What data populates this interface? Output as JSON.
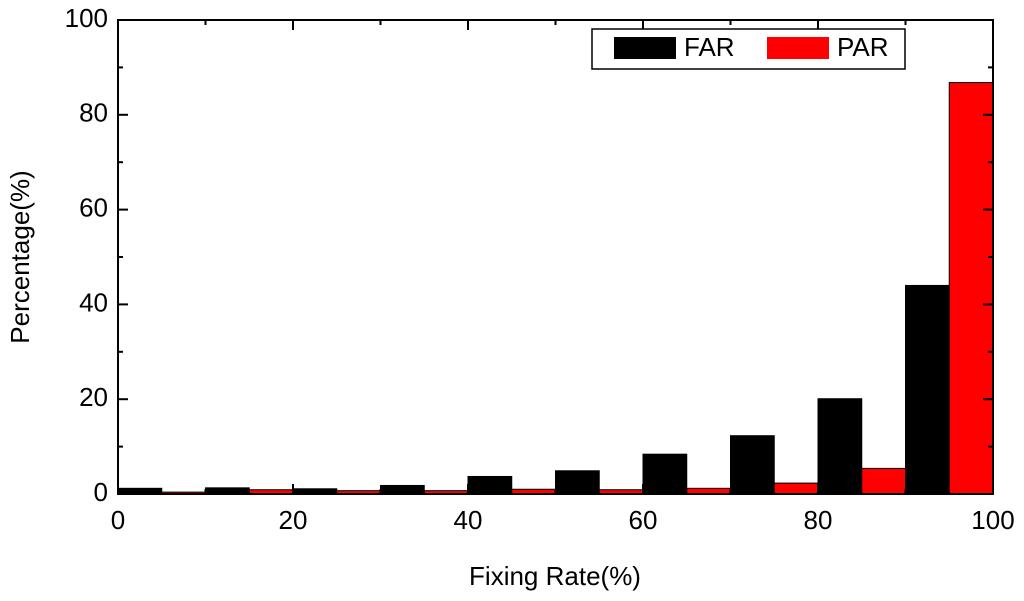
{
  "chart_data": {
    "type": "histogram",
    "xlabel": "Fixing Rate(%)",
    "ylabel": "Percentage(%)",
    "bins": [
      0,
      10,
      20,
      30,
      40,
      50,
      60,
      70,
      80,
      90,
      100
    ],
    "series": [
      {
        "name": "FAR",
        "color": "#000000",
        "values": [
          1.2,
          1.3,
          1.1,
          1.8,
          3.7,
          4.9,
          8.4,
          12.3,
          20.1,
          44.0
        ]
      },
      {
        "name": "PAR",
        "color": "#ff0000",
        "values": [
          0.4,
          0.9,
          0.7,
          0.7,
          1.0,
          0.9,
          1.2,
          2.3,
          5.4,
          86.8
        ]
      }
    ],
    "xlim": [
      0,
      100
    ],
    "xticks": [
      0,
      20,
      40,
      60,
      80,
      100
    ],
    "ylim": [
      0,
      100
    ],
    "yticks": [
      0,
      20,
      40,
      60,
      80,
      100
    ],
    "legend": "top-right"
  }
}
